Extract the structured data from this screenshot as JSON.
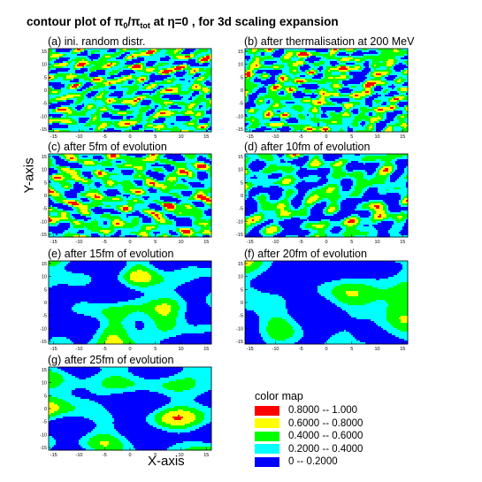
{
  "title": {
    "pre": "contour plot of π",
    "sub1": "0",
    "mid": "/π",
    "sub2": "tot",
    "post": " at η=0 , for 3d scaling expansion"
  },
  "ylabel": "Y-axis",
  "xlabel": "X-axis",
  "legend": {
    "title": "color map",
    "entries": [
      {
        "color": "#ff0000",
        "range": "0.8000  --  1.000"
      },
      {
        "color": "#ffff00",
        "range": "0.6000  --  0.8000"
      },
      {
        "color": "#00ff00",
        "range": "0.4000  --  0.6000"
      },
      {
        "color": "#00ffff",
        "range": "0.2000  --  0.4000"
      },
      {
        "color": "#0000ff",
        "range": "0  --  0.2000"
      }
    ]
  },
  "chart_data": [
    {
      "type": "heatmap",
      "title": "(a) ini. random distr.",
      "xlim": [
        -16,
        16
      ],
      "ylim": [
        -16,
        16
      ],
      "xticks": [
        -15,
        -10,
        -5,
        0,
        5,
        10,
        15
      ],
      "yticks": [
        -15,
        -10,
        -5,
        0,
        5,
        10,
        15
      ],
      "levels": [
        0,
        0.2,
        0.4,
        0.6,
        0.8,
        1.0
      ]
    },
    {
      "type": "heatmap",
      "title": "(b) after thermalisation at 200 MeV",
      "xlim": [
        -16,
        16
      ],
      "ylim": [
        -16,
        16
      ],
      "xticks": [
        -15,
        -10,
        -5,
        0,
        5,
        10,
        15
      ],
      "yticks": [
        -15,
        -10,
        -5,
        0,
        5,
        10,
        15
      ],
      "levels": [
        0,
        0.2,
        0.4,
        0.6,
        0.8,
        1.0
      ]
    },
    {
      "type": "heatmap",
      "title": "(c) after 5fm of evolution",
      "xlim": [
        -16,
        16
      ],
      "ylim": [
        -16,
        16
      ],
      "xticks": [
        -15,
        -10,
        -5,
        0,
        5,
        10,
        15
      ],
      "yticks": [
        -15,
        -10,
        -5,
        0,
        5,
        10,
        15
      ],
      "levels": [
        0,
        0.2,
        0.4,
        0.6,
        0.8,
        1.0
      ]
    },
    {
      "type": "heatmap",
      "title": "(d) after 10fm of evolution",
      "xlim": [
        -16,
        16
      ],
      "ylim": [
        -16,
        16
      ],
      "xticks": [
        -15,
        -10,
        -5,
        0,
        5,
        10,
        15
      ],
      "yticks": [
        -15,
        -10,
        -5,
        0,
        5,
        10,
        15
      ],
      "levels": [
        0,
        0.2,
        0.4,
        0.6,
        0.8,
        1.0
      ]
    },
    {
      "type": "heatmap",
      "title": "(e) after 15fm of evolution",
      "xlim": [
        -16,
        16
      ],
      "ylim": [
        -16,
        16
      ],
      "xticks": [
        -15,
        -10,
        -5,
        0,
        5,
        10,
        15
      ],
      "yticks": [
        -15,
        -10,
        -5,
        0,
        5,
        10,
        15
      ],
      "levels": [
        0,
        0.2,
        0.4,
        0.6,
        0.8,
        1.0
      ]
    },
    {
      "type": "heatmap",
      "title": "(f) after 20fm of evolution",
      "xlim": [
        -16,
        16
      ],
      "ylim": [
        -16,
        16
      ],
      "xticks": [
        -15,
        -10,
        -5,
        0,
        5,
        10,
        15
      ],
      "yticks": [
        -15,
        -10,
        -5,
        0,
        5,
        10,
        15
      ],
      "levels": [
        0,
        0.2,
        0.4,
        0.6,
        0.8,
        1.0
      ]
    },
    {
      "type": "heatmap",
      "title": "(g) after 25fm of evolution",
      "xlim": [
        -16,
        16
      ],
      "ylim": [
        -16,
        16
      ],
      "xticks": [
        -15,
        -10,
        -5,
        0,
        5,
        10,
        15
      ],
      "yticks": [
        -15,
        -10,
        -5,
        0,
        5,
        10,
        15
      ],
      "levels": [
        0,
        0.2,
        0.4,
        0.6,
        0.8,
        1.0
      ]
    }
  ]
}
